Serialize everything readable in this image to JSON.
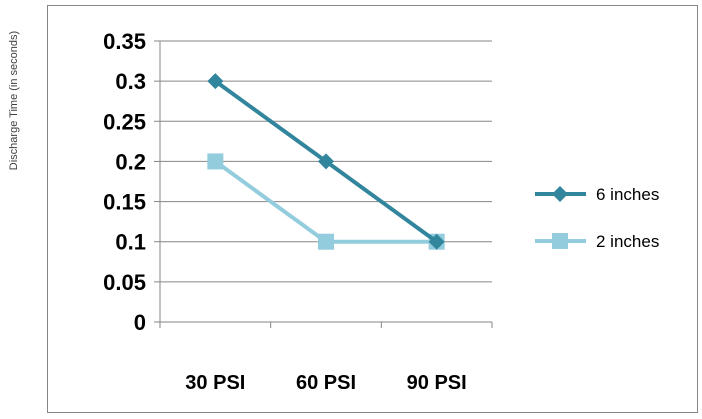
{
  "chart_data": {
    "type": "line",
    "title": "",
    "xlabel": "",
    "ylabel": "Discharge Time (in seconds)",
    "categories": [
      "30 PSI",
      "60 PSI",
      "90 PSI"
    ],
    "y_ticks": [
      "0",
      "0.05",
      "0.1",
      "0.15",
      "0.2",
      "0.25",
      "0.3",
      "0.35"
    ],
    "ylim": [
      0,
      0.35
    ],
    "grid": true,
    "legend_position": "right",
    "series": [
      {
        "name": "6 inches",
        "values": [
          0.3,
          0.2,
          0.1
        ],
        "color": "#31859C",
        "marker": "diamond"
      },
      {
        "name": "2 inches",
        "values": [
          0.2,
          0.1,
          0.1
        ],
        "color": "#93CDDD",
        "marker": "square"
      }
    ]
  }
}
